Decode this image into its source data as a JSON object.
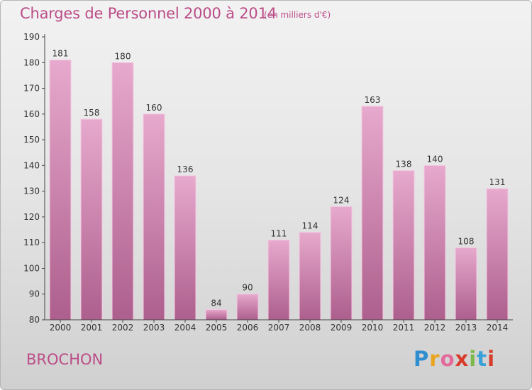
{
  "chart_data": {
    "type": "bar",
    "title": "Charges de Personnel 2000 à 2014",
    "subtitle": "(en milliers d'€)",
    "xlabel": "",
    "ylabel": "",
    "categories": [
      "2000",
      "2001",
      "2002",
      "2003",
      "2004",
      "2005",
      "2006",
      "2007",
      "2008",
      "2009",
      "2010",
      "2011",
      "2012",
      "2013",
      "2014"
    ],
    "values": [
      181,
      158,
      180,
      160,
      136,
      84,
      90,
      111,
      114,
      124,
      163,
      138,
      140,
      108,
      131
    ],
    "value_labels": [
      "181",
      "158",
      "180",
      "160",
      "136",
      "84",
      "90",
      "111",
      "114",
      "124",
      "163",
      "138",
      "140",
      "108",
      "131"
    ],
    "ylim": [
      80,
      190
    ],
    "yticks": [
      80,
      90,
      100,
      110,
      120,
      130,
      140,
      150,
      160,
      170,
      180,
      190
    ],
    "ytick_labels": [
      "80",
      "90",
      "100",
      "110",
      "120",
      "130",
      "140",
      "150",
      "160",
      "170",
      "180",
      "190"
    ],
    "grid": false,
    "legend": "none"
  },
  "footer": {
    "commune": "BROCHON",
    "logo_letters": [
      "P",
      "r",
      "o",
      "x",
      "i",
      "t",
      "i"
    ],
    "logo_text": "Proxiti"
  },
  "colors": {
    "title": "#bb4d88",
    "bar_light": "#e7a9cd",
    "bar_dark": "#ad5f8d",
    "axis": "#444444"
  }
}
